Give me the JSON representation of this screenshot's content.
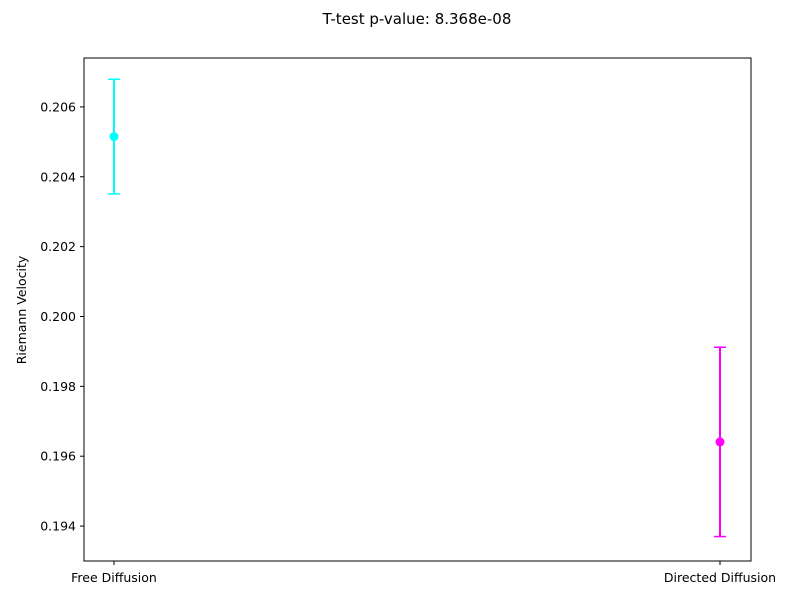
{
  "chart_data": {
    "type": "errorbar",
    "title": "T-test p-value: 8.368e-08",
    "xlabel": "",
    "ylabel": "Riemann Velocity",
    "categories": [
      "Free Diffusion",
      "Directed Diffusion"
    ],
    "series": [
      {
        "values": [
          0.20515,
          0.19641
        ],
        "errors": [
          0.00164,
          0.00271
        ],
        "colors": [
          "#00ffff",
          "#ff00ff"
        ]
      }
    ],
    "ylim": [
      0.193,
      0.2074
    ],
    "yticks": [
      "0.194",
      "0.196",
      "0.198",
      "0.200",
      "0.202",
      "0.204",
      "0.206"
    ],
    "grid": false,
    "legend": "none"
  }
}
